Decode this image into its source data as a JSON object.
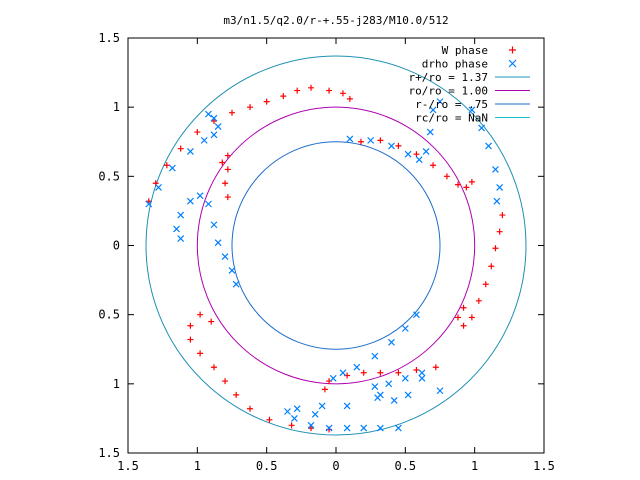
{
  "chart_data": {
    "type": "scatter",
    "title": "m3/n1.5/q2.0/r-+.55-j283/M10.0/512",
    "xlim": [
      -1.5,
      1.5
    ],
    "ylim": [
      -1.5,
      1.5
    ],
    "x_tick_values": [
      -1.5,
      -1,
      -0.5,
      0,
      0.5,
      1,
      1.5
    ],
    "x_tick_labels": [
      "1.5",
      "1",
      "0.5",
      "0",
      "0.5",
      "1",
      "1.5"
    ],
    "y_tick_values": [
      1.5,
      1,
      0.5,
      0,
      -0.5,
      -1,
      -1.5
    ],
    "y_tick_labels": [
      "1.5",
      "1",
      "0.5",
      "0",
      "0.5",
      "1",
      "1.5"
    ],
    "grid": false,
    "legend_position": "top-right",
    "legend": [
      {
        "label": "W phase",
        "color": "#ff0000",
        "kind": "plus"
      },
      {
        "label": "drho phase",
        "color": "#0080ff",
        "kind": "cross"
      },
      {
        "label": "r+/ro = 1.37",
        "color": "#1e90b4",
        "kind": "line"
      },
      {
        "label": "ro/ro = 1.00",
        "color": "#b000b0",
        "kind": "line"
      },
      {
        "label": "r-/ro = .75",
        "color": "#1e6ec8",
        "kind": "line"
      },
      {
        "label": "rc/ro = NaN",
        "color": "#20c0c8",
        "kind": "line"
      }
    ],
    "circles": [
      {
        "name": "r+/ro",
        "radius": 1.37,
        "color": "#1e90b4"
      },
      {
        "name": "ro/ro",
        "radius": 1.0,
        "color": "#b000b0"
      },
      {
        "name": "r-/ro",
        "radius": 0.75,
        "color": "#1e6ec8"
      }
    ],
    "series": [
      {
        "name": "W phase",
        "color": "#ff0000",
        "marker": "plus",
        "points": [
          [
            -1.35,
            0.32
          ],
          [
            -1.3,
            0.45
          ],
          [
            -1.22,
            0.58
          ],
          [
            -1.12,
            0.7
          ],
          [
            -1.0,
            0.82
          ],
          [
            -0.88,
            0.9
          ],
          [
            -0.75,
            0.96
          ],
          [
            -0.62,
            1.0
          ],
          [
            -0.5,
            1.04
          ],
          [
            -0.38,
            1.08
          ],
          [
            -0.28,
            1.12
          ],
          [
            -0.18,
            1.14
          ],
          [
            -0.05,
            1.12
          ],
          [
            0.05,
            1.1
          ],
          [
            0.1,
            1.06
          ],
          [
            0.18,
            0.75
          ],
          [
            0.32,
            0.76
          ],
          [
            0.45,
            0.72
          ],
          [
            0.58,
            0.66
          ],
          [
            0.7,
            0.58
          ],
          [
            0.8,
            0.5
          ],
          [
            0.88,
            0.44
          ],
          [
            0.94,
            0.42
          ],
          [
            0.98,
            0.46
          ],
          [
            1.2,
            0.22
          ],
          [
            1.18,
            0.1
          ],
          [
            1.15,
            -0.02
          ],
          [
            1.12,
            -0.15
          ],
          [
            1.08,
            -0.28
          ],
          [
            1.03,
            -0.4
          ],
          [
            0.98,
            -0.52
          ],
          [
            0.92,
            -0.58
          ],
          [
            0.88,
            -0.52
          ],
          [
            0.92,
            -0.45
          ],
          [
            0.72,
            -0.88
          ],
          [
            0.58,
            -0.9
          ],
          [
            0.45,
            -0.92
          ],
          [
            0.32,
            -0.92
          ],
          [
            0.2,
            -0.92
          ],
          [
            0.08,
            -0.94
          ],
          [
            -0.05,
            -0.98
          ],
          [
            -0.08,
            -1.04
          ],
          [
            -0.05,
            -1.33
          ],
          [
            -0.18,
            -1.32
          ],
          [
            -0.32,
            -1.3
          ],
          [
            -0.48,
            -1.26
          ],
          [
            -0.62,
            -1.18
          ],
          [
            -0.72,
            -1.08
          ],
          [
            -0.8,
            -0.98
          ],
          [
            -0.88,
            -0.88
          ],
          [
            -0.98,
            -0.78
          ],
          [
            -1.05,
            -0.68
          ],
          [
            -1.05,
            -0.58
          ],
          [
            -0.98,
            -0.5
          ],
          [
            -0.9,
            -0.55
          ],
          [
            -0.78,
            0.55
          ],
          [
            -0.8,
            0.45
          ],
          [
            -0.78,
            0.35
          ],
          [
            -0.82,
            0.6
          ],
          [
            -0.78,
            0.65
          ]
        ]
      },
      {
        "name": "drho phase",
        "color": "#0080ff",
        "marker": "cross",
        "points": [
          [
            -1.35,
            0.3
          ],
          [
            -1.28,
            0.42
          ],
          [
            -1.18,
            0.56
          ],
          [
            -1.05,
            0.68
          ],
          [
            -0.95,
            0.76
          ],
          [
            -0.88,
            0.8
          ],
          [
            -0.85,
            0.86
          ],
          [
            -0.88,
            0.92
          ],
          [
            -0.92,
            0.95
          ],
          [
            -1.12,
            0.05
          ],
          [
            -1.15,
            0.12
          ],
          [
            -1.12,
            0.22
          ],
          [
            -1.05,
            0.32
          ],
          [
            -0.98,
            0.36
          ],
          [
            -0.92,
            0.3
          ],
          [
            -0.88,
            0.15
          ],
          [
            -0.85,
            0.02
          ],
          [
            -0.8,
            -0.08
          ],
          [
            -0.75,
            -0.18
          ],
          [
            -0.72,
            -0.28
          ],
          [
            0.1,
            0.77
          ],
          [
            0.25,
            0.76
          ],
          [
            0.4,
            0.72
          ],
          [
            0.52,
            0.66
          ],
          [
            0.6,
            0.62
          ],
          [
            0.65,
            0.68
          ],
          [
            0.68,
            0.82
          ],
          [
            0.7,
            0.98
          ],
          [
            0.75,
            1.04
          ],
          [
            0.98,
            0.98
          ],
          [
            1.05,
            0.85
          ],
          [
            1.1,
            0.72
          ],
          [
            1.15,
            0.55
          ],
          [
            1.18,
            0.42
          ],
          [
            1.16,
            0.32
          ],
          [
            0.58,
            -0.5
          ],
          [
            0.5,
            -0.6
          ],
          [
            0.4,
            -0.7
          ],
          [
            0.28,
            -0.8
          ],
          [
            0.15,
            -0.88
          ],
          [
            0.05,
            -0.92
          ],
          [
            -0.02,
            -0.96
          ],
          [
            0.62,
            -0.92
          ],
          [
            0.5,
            -0.96
          ],
          [
            0.38,
            -1.0
          ],
          [
            0.28,
            -1.02
          ],
          [
            0.32,
            -1.08
          ],
          [
            0.42,
            -1.12
          ],
          [
            0.52,
            -1.08
          ],
          [
            0.62,
            -0.96
          ],
          [
            0.45,
            -1.32
          ],
          [
            0.32,
            -1.32
          ],
          [
            0.2,
            -1.32
          ],
          [
            0.08,
            -1.32
          ],
          [
            -0.05,
            -1.32
          ],
          [
            -0.18,
            -1.3
          ],
          [
            -0.3,
            -1.25
          ],
          [
            -0.35,
            -1.2
          ],
          [
            -0.28,
            -1.18
          ],
          [
            -0.15,
            -1.22
          ],
          [
            0.3,
            -1.1
          ],
          [
            0.08,
            -1.16
          ],
          [
            -0.1,
            -1.16
          ],
          [
            0.75,
            -1.05
          ]
        ]
      }
    ]
  }
}
